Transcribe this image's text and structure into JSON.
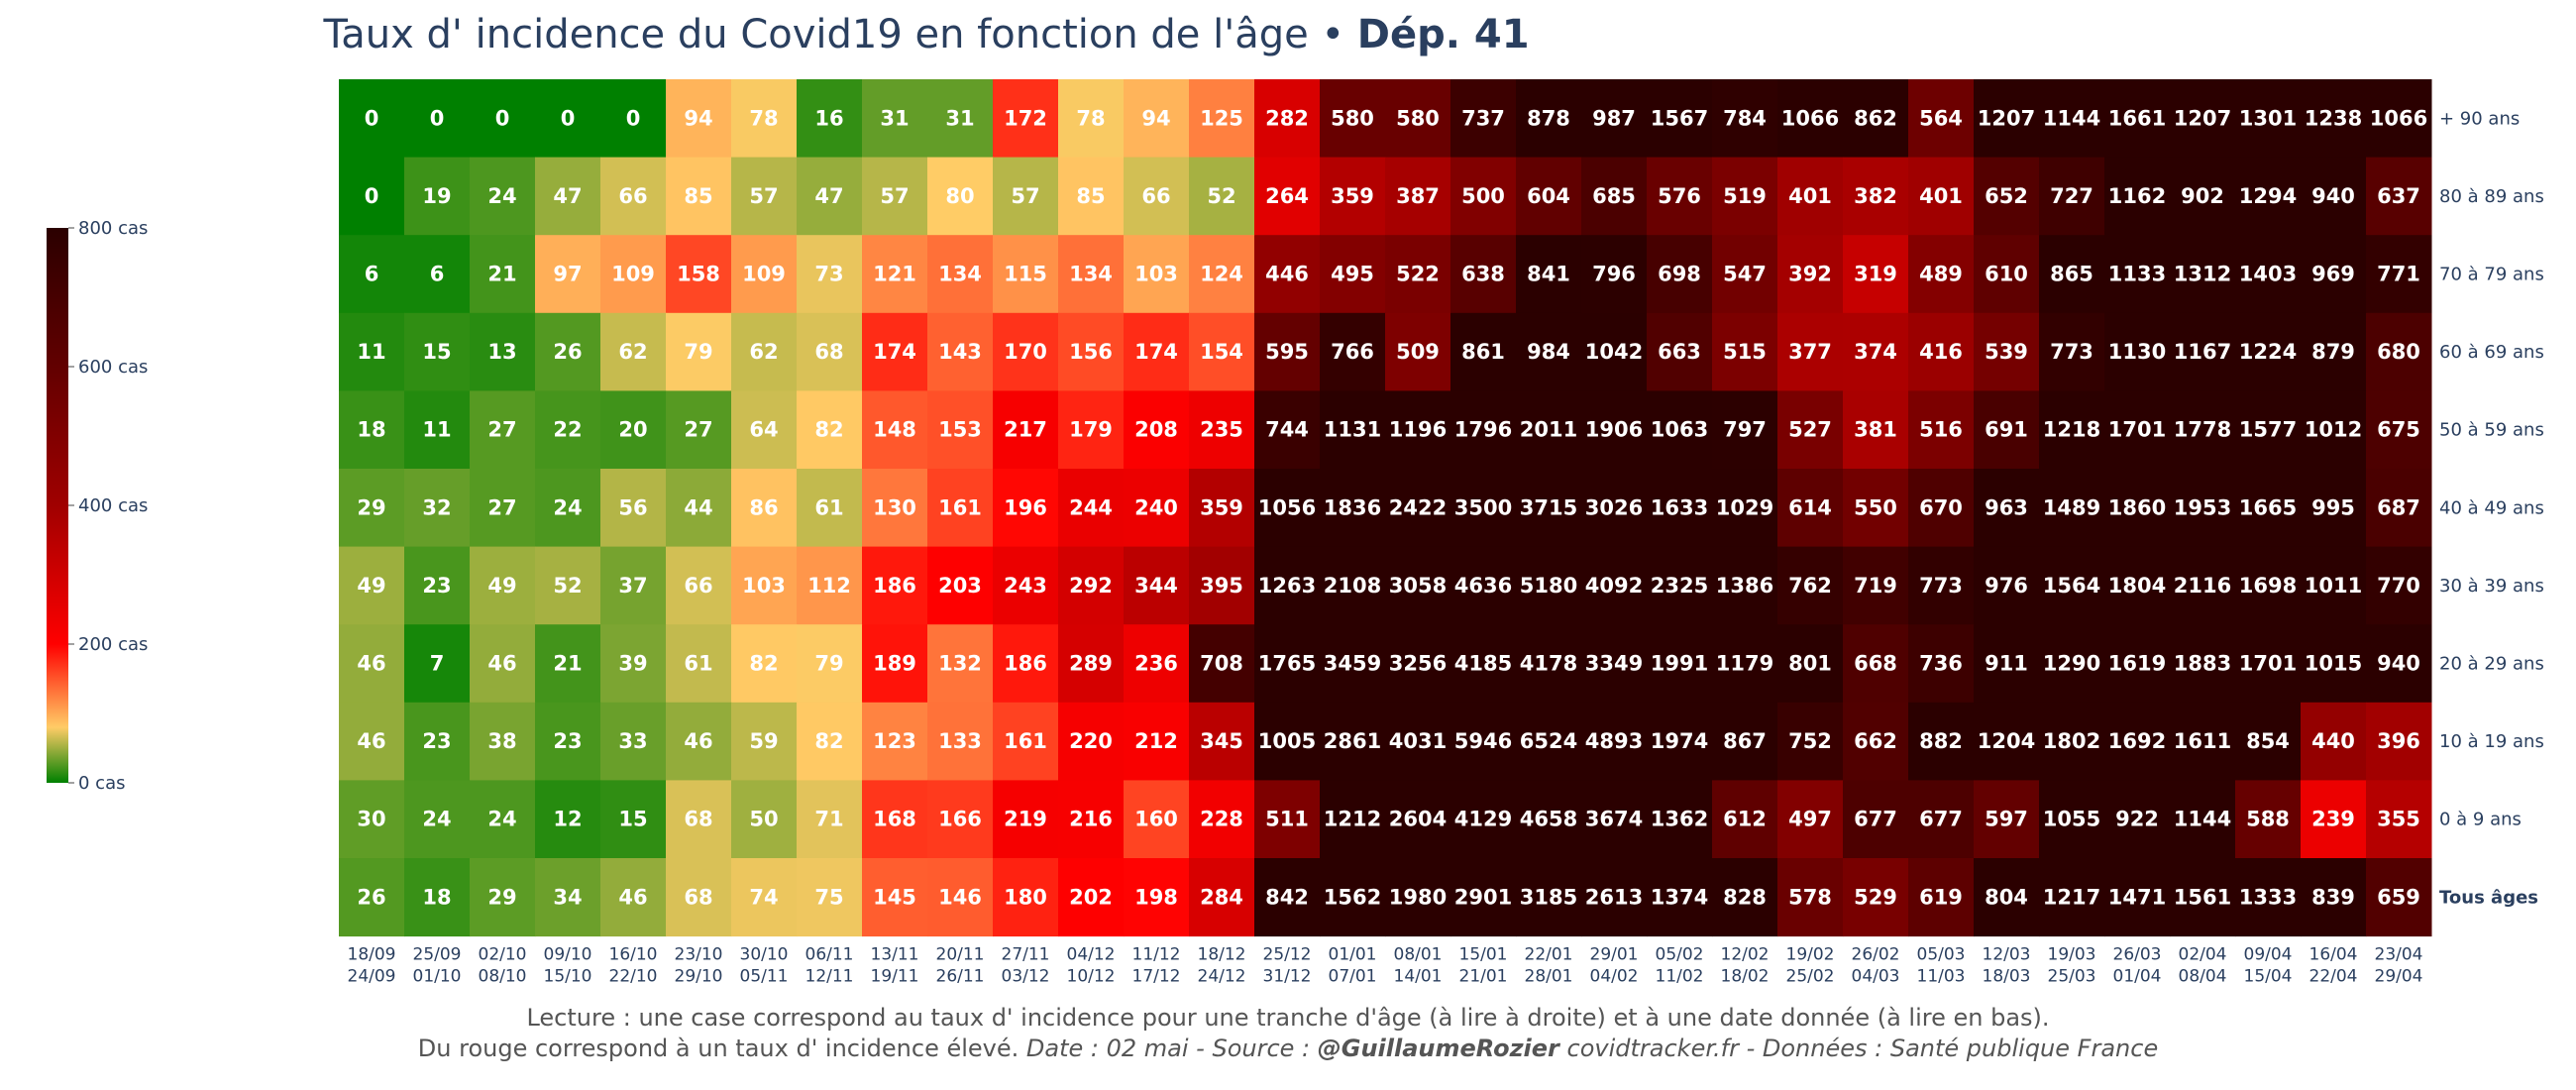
{
  "title": {
    "main": "Taux d' incidence du Covid19 en fonction de l'âge • ",
    "bold": "Dép. 41"
  },
  "chart_data": {
    "type": "heatmap",
    "colorscale": {
      "stops": [
        [
          0,
          "#008000"
        ],
        [
          0.1,
          "#ffcc66"
        ],
        [
          0.25,
          "#ff0000"
        ],
        [
          0.5,
          "#a00000"
        ],
        [
          0.75,
          "#620000"
        ],
        [
          1,
          "#2b0000"
        ]
      ],
      "zmin": 0,
      "zmax": 800,
      "tick_labels": [
        "0 cas",
        "200 cas",
        "400 cas",
        "600 cas",
        "800 cas"
      ]
    },
    "rows": [
      "+ 90 ans",
      "80 à 89 ans",
      "70 à 79 ans",
      "60 à 69 ans",
      "50 à 59 ans",
      "40 à 49 ans",
      "30 à 39 ans",
      "20 à 29 ans",
      "10 à 19 ans",
      "0 à 9 ans",
      "Tous âges"
    ],
    "columns": [
      [
        "18/09",
        "24/09"
      ],
      [
        "25/09",
        "01/10"
      ],
      [
        "02/10",
        "08/10"
      ],
      [
        "09/10",
        "15/10"
      ],
      [
        "16/10",
        "22/10"
      ],
      [
        "23/10",
        "29/10"
      ],
      [
        "30/10",
        "05/11"
      ],
      [
        "06/11",
        "12/11"
      ],
      [
        "13/11",
        "19/11"
      ],
      [
        "20/11",
        "26/11"
      ],
      [
        "27/11",
        "03/12"
      ],
      [
        "04/12",
        "10/12"
      ],
      [
        "11/12",
        "17/12"
      ],
      [
        "18/12",
        "24/12"
      ],
      [
        "25/12",
        "31/12"
      ],
      [
        "01/01",
        "07/01"
      ],
      [
        "08/01",
        "14/01"
      ],
      [
        "15/01",
        "21/01"
      ],
      [
        "22/01",
        "28/01"
      ],
      [
        "29/01",
        "04/02"
      ],
      [
        "05/02",
        "11/02"
      ],
      [
        "12/02",
        "18/02"
      ],
      [
        "19/02",
        "25/02"
      ],
      [
        "26/02",
        "04/03"
      ],
      [
        "05/03",
        "11/03"
      ],
      [
        "12/03",
        "18/03"
      ],
      [
        "19/03",
        "25/03"
      ],
      [
        "26/03",
        "01/04"
      ],
      [
        "02/04",
        "08/04"
      ],
      [
        "09/04",
        "15/04"
      ],
      [
        "16/04",
        "22/04"
      ],
      [
        "23/04",
        "29/04"
      ]
    ],
    "values": [
      [
        0,
        0,
        0,
        0,
        0,
        94,
        78,
        16,
        31,
        31,
        172,
        78,
        94,
        125,
        282,
        580,
        580,
        737,
        878,
        987,
        1567,
        784,
        1066,
        862,
        564,
        1207,
        1144,
        1661,
        1207,
        1301,
        1238,
        1066
      ],
      [
        0,
        19,
        24,
        47,
        66,
        85,
        57,
        47,
        57,
        80,
        57,
        85,
        66,
        52,
        264,
        359,
        387,
        500,
        604,
        685,
        576,
        519,
        401,
        382,
        401,
        652,
        727,
        1162,
        902,
        1294,
        940,
        637
      ],
      [
        6,
        6,
        21,
        97,
        109,
        158,
        109,
        73,
        121,
        134,
        115,
        134,
        103,
        124,
        446,
        495,
        522,
        638,
        841,
        796,
        698,
        547,
        392,
        319,
        489,
        610,
        865,
        1133,
        1312,
        1403,
        969,
        771
      ],
      [
        11,
        15,
        13,
        26,
        62,
        79,
        62,
        68,
        174,
        143,
        170,
        156,
        174,
        154,
        595,
        766,
        509,
        861,
        984,
        1042,
        663,
        515,
        377,
        374,
        416,
        539,
        773,
        1130,
        1167,
        1224,
        879,
        680
      ],
      [
        18,
        11,
        27,
        22,
        20,
        27,
        64,
        82,
        148,
        153,
        217,
        179,
        208,
        235,
        744,
        1131,
        1196,
        1796,
        2011,
        1906,
        1063,
        797,
        527,
        381,
        516,
        691,
        1218,
        1701,
        1778,
        1577,
        1012,
        675
      ],
      [
        29,
        32,
        27,
        24,
        56,
        44,
        86,
        61,
        130,
        161,
        196,
        244,
        240,
        359,
        1056,
        1836,
        2422,
        3500,
        3715,
        3026,
        1633,
        1029,
        614,
        550,
        670,
        963,
        1489,
        1860,
        1953,
        1665,
        995,
        687
      ],
      [
        49,
        23,
        49,
        52,
        37,
        66,
        103,
        112,
        186,
        203,
        243,
        292,
        344,
        395,
        1263,
        2108,
        3058,
        4636,
        5180,
        4092,
        2325,
        1386,
        762,
        719,
        773,
        976,
        1564,
        1804,
        2116,
        1698,
        1011,
        770
      ],
      [
        46,
        7,
        46,
        21,
        39,
        61,
        82,
        79,
        189,
        132,
        186,
        289,
        236,
        708,
        1765,
        3459,
        3256,
        4185,
        4178,
        3349,
        1991,
        1179,
        801,
        668,
        736,
        911,
        1290,
        1619,
        1883,
        1701,
        1015,
        940
      ],
      [
        46,
        23,
        38,
        23,
        33,
        46,
        59,
        82,
        123,
        133,
        161,
        220,
        212,
        345,
        1005,
        2861,
        4031,
        5946,
        6524,
        4893,
        1974,
        867,
        752,
        662,
        882,
        1204,
        1802,
        1692,
        1611,
        854,
        440,
        396
      ],
      [
        30,
        24,
        24,
        12,
        15,
        68,
        50,
        71,
        168,
        166,
        219,
        216,
        160,
        228,
        511,
        1212,
        2604,
        4129,
        4658,
        3674,
        1362,
        612,
        497,
        677,
        677,
        597,
        1055,
        922,
        1144,
        588,
        239,
        355
      ],
      [
        26,
        18,
        29,
        34,
        46,
        68,
        74,
        75,
        145,
        146,
        180,
        202,
        198,
        284,
        842,
        1562,
        1980,
        2901,
        3185,
        2613,
        1374,
        828,
        578,
        529,
        619,
        804,
        1217,
        1471,
        1561,
        1333,
        839,
        659
      ]
    ]
  },
  "footer": {
    "line1": "Lecture : une case correspond au taux d' incidence pour une tranche d'âge (à lire à droite) et à une date donnée (à lire en bas).",
    "line2_plain": "Du rouge correspond à un taux d' incidence élevé.",
    "line2_date": "Date : 02 mai - Source : ",
    "line2_author": "@GuillaumeRozier",
    "line2_rest": " covidtracker.fr - Données : Santé publique France"
  }
}
